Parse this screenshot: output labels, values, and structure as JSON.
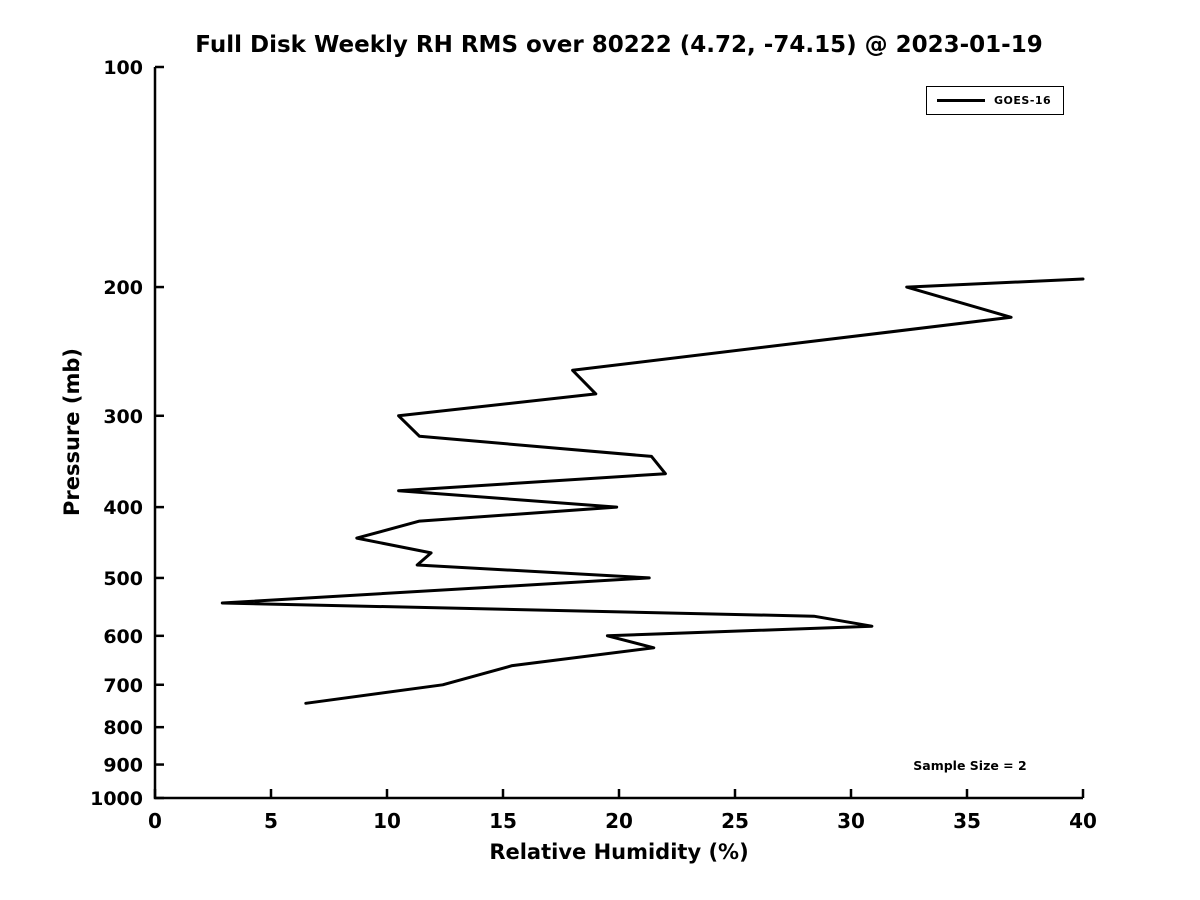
{
  "title": "Full Disk Weekly RH RMS over 80222 (4.72, -74.15) @ 2023-01-19",
  "chart_data": {
    "type": "line",
    "title": "Full Disk Weekly RH RMS over 80222 (4.72, -74.15) @ 2023-01-19",
    "xlabel": "Relative Humidity (%)",
    "ylabel": "Pressure (mb)",
    "xlim": [
      0,
      40
    ],
    "ylim": [
      1000,
      100
    ],
    "yscale": "log",
    "y_axis_inverted": true,
    "grid": false,
    "x_ticks": [
      0,
      5,
      10,
      15,
      20,
      25,
      30,
      35,
      40
    ],
    "y_ticks": [
      100,
      200,
      300,
      400,
      500,
      600,
      700,
      800,
      900,
      1000
    ],
    "legend": {
      "position": "upper right",
      "entries": [
        "GOES-16"
      ]
    },
    "annotations": [
      {
        "text": "Sample Size = 2"
      }
    ],
    "series": [
      {
        "name": "GOES-16",
        "color": "#000000",
        "points_format": [
          "relative_humidity_pct",
          "pressure_mb"
        ],
        "points": [
          [
            40.0,
            195
          ],
          [
            32.4,
            200
          ],
          [
            36.9,
            220
          ],
          [
            18.0,
            260
          ],
          [
            19.0,
            280
          ],
          [
            10.5,
            300
          ],
          [
            11.4,
            320
          ],
          [
            21.4,
            341
          ],
          [
            22.0,
            360
          ],
          [
            10.5,
            380
          ],
          [
            19.9,
            400
          ],
          [
            11.4,
            418
          ],
          [
            8.7,
            441
          ],
          [
            11.9,
            462
          ],
          [
            11.3,
            480
          ],
          [
            21.3,
            500
          ],
          [
            2.9,
            541
          ],
          [
            28.4,
            564
          ],
          [
            30.9,
            582
          ],
          [
            19.5,
            600
          ],
          [
            21.5,
            623
          ],
          [
            15.4,
            659
          ],
          [
            12.4,
            700
          ],
          [
            6.5,
            742
          ]
        ]
      }
    ]
  },
  "colors": {
    "line": "#000000",
    "axis": "#000000",
    "text": "#000000",
    "background": "#ffffff"
  }
}
